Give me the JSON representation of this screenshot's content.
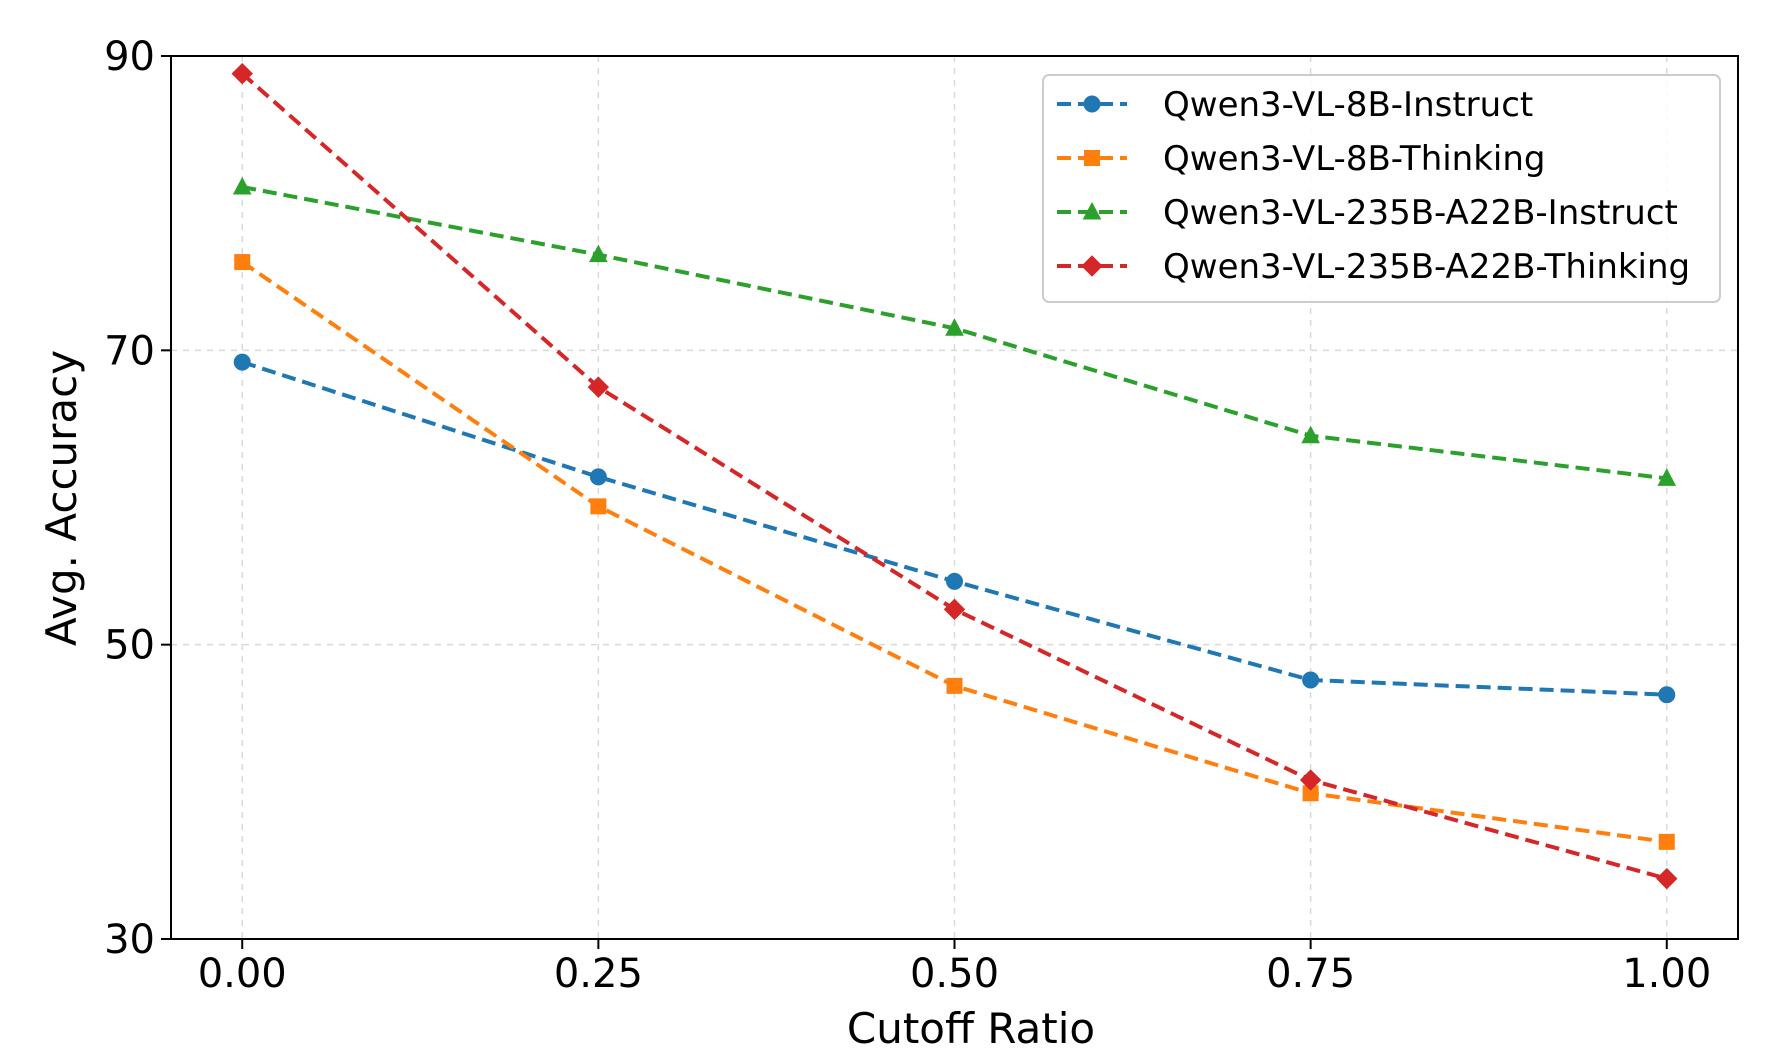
{
  "chart_data": {
    "type": "line",
    "title": "",
    "xlabel": "Cutoff Ratio",
    "ylabel": "Avg. Accuracy",
    "x": [
      0.0,
      0.25,
      0.5,
      0.75,
      1.0
    ],
    "x_ticks": [
      "0.00",
      "0.25",
      "0.50",
      "0.75",
      "1.00"
    ],
    "y_ticks": [
      "30",
      "50",
      "70",
      "90"
    ],
    "y_tick_values": [
      30,
      50,
      70,
      90
    ],
    "xlim": [
      -0.05,
      1.05
    ],
    "ylim": [
      30,
      90
    ],
    "grid": true,
    "legend_position": "top-right",
    "series": [
      {
        "name": "Qwen3-VL-8B-Instruct",
        "color": "#1f77b4",
        "marker": "circle",
        "values": [
          69.2,
          61.4,
          54.3,
          47.6,
          46.6
        ]
      },
      {
        "name": "Qwen3-VL-8B-Thinking",
        "color": "#ff7f0e",
        "marker": "square",
        "values": [
          76.0,
          59.4,
          47.2,
          39.9,
          36.6
        ]
      },
      {
        "name": "Qwen3-VL-235B-A22B-Instruct",
        "color": "#2ca02c",
        "marker": "triangle",
        "values": [
          81.1,
          76.5,
          71.5,
          64.2,
          61.3
        ]
      },
      {
        "name": "Qwen3-VL-235B-A22B-Thinking",
        "color": "#d62728",
        "marker": "diamond",
        "values": [
          88.8,
          67.5,
          52.4,
          40.8,
          34.1
        ]
      }
    ]
  }
}
